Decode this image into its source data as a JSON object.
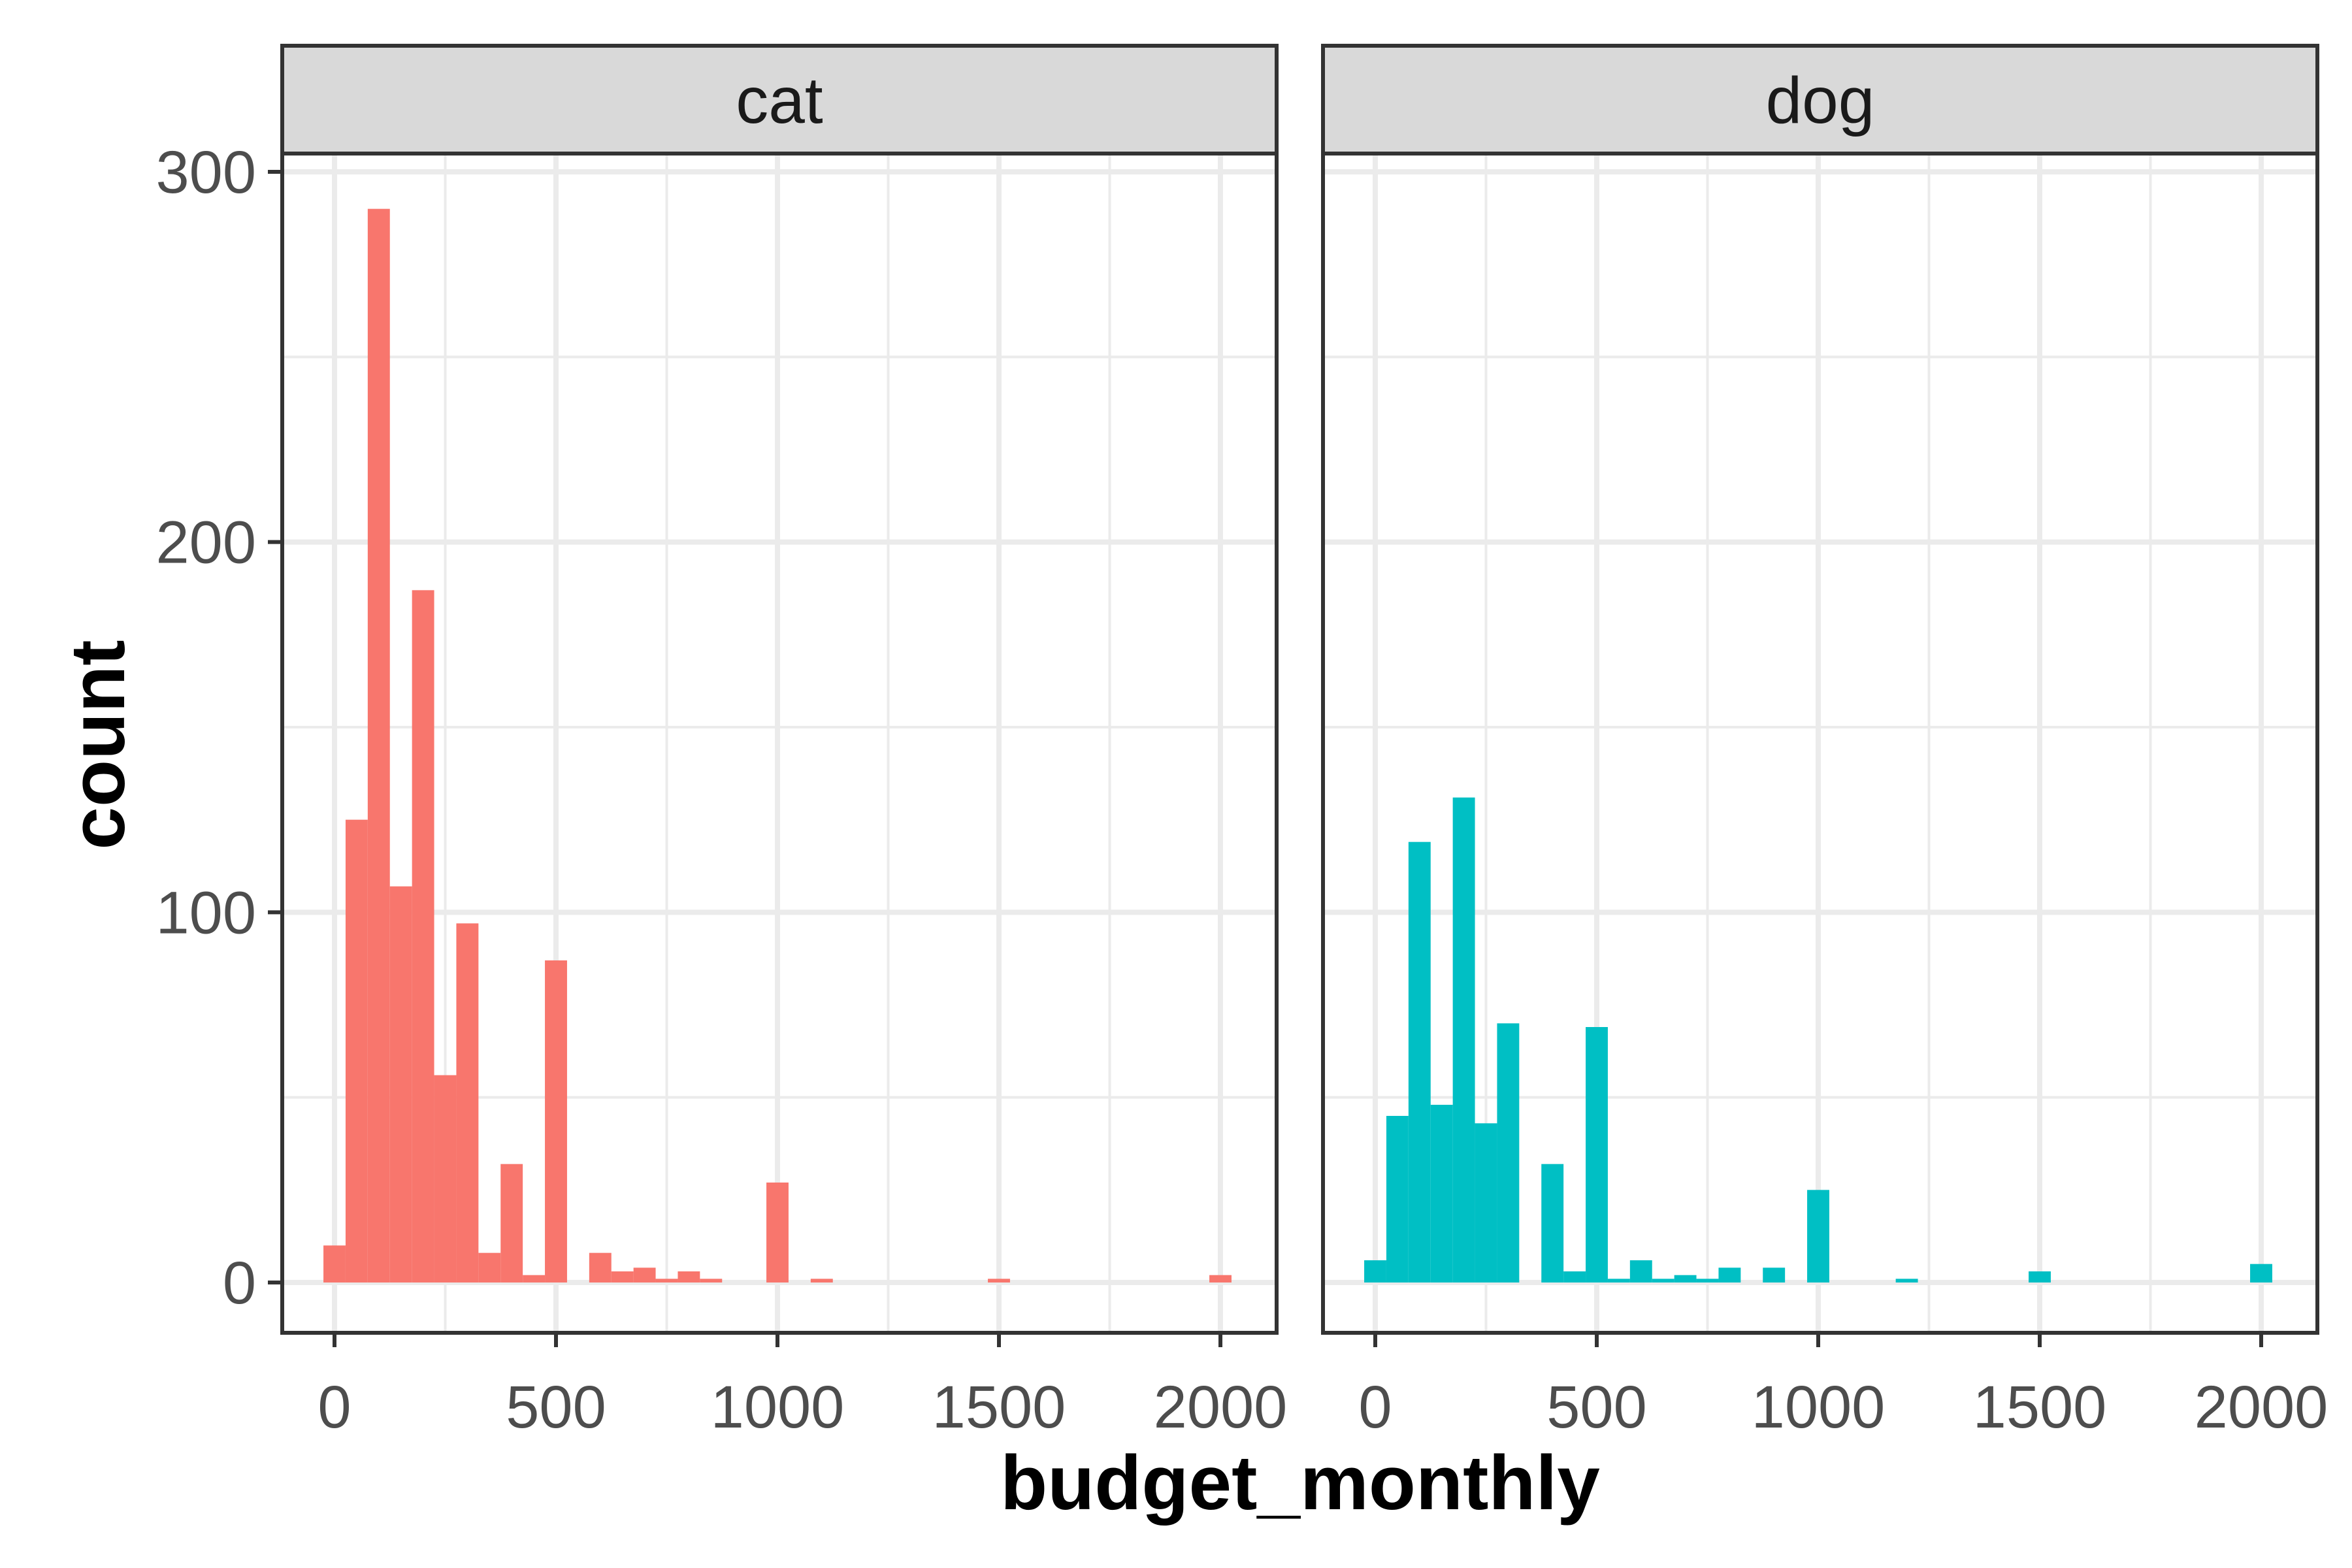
{
  "chart_data": {
    "type": "bar",
    "xlabel": "budget_monthly",
    "ylabel": "count",
    "xlim": [
      -100,
      2100
    ],
    "ylim": [
      0,
      300
    ],
    "x_ticks": [
      0,
      500,
      1000,
      1500,
      2000
    ],
    "y_ticks": [
      0,
      100,
      200,
      300
    ],
    "bin_width": 50,
    "grid": true,
    "facets": [
      {
        "label": "cat",
        "color": "#F8766D",
        "bins": [
          {
            "x": 0,
            "count": 10
          },
          {
            "x": 50,
            "count": 125
          },
          {
            "x": 100,
            "count": 290
          },
          {
            "x": 150,
            "count": 107
          },
          {
            "x": 200,
            "count": 187
          },
          {
            "x": 250,
            "count": 56
          },
          {
            "x": 300,
            "count": 97
          },
          {
            "x": 350,
            "count": 8
          },
          {
            "x": 400,
            "count": 32
          },
          {
            "x": 450,
            "count": 2
          },
          {
            "x": 500,
            "count": 87
          },
          {
            "x": 600,
            "count": 8
          },
          {
            "x": 650,
            "count": 3
          },
          {
            "x": 700,
            "count": 4
          },
          {
            "x": 750,
            "count": 1
          },
          {
            "x": 800,
            "count": 3
          },
          {
            "x": 850,
            "count": 1
          },
          {
            "x": 1000,
            "count": 27
          },
          {
            "x": 1100,
            "count": 1
          },
          {
            "x": 1500,
            "count": 1
          },
          {
            "x": 2000,
            "count": 2
          }
        ]
      },
      {
        "label": "dog",
        "color": "#00BFC4",
        "bins": [
          {
            "x": 0,
            "count": 6
          },
          {
            "x": 50,
            "count": 45
          },
          {
            "x": 100,
            "count": 119
          },
          {
            "x": 150,
            "count": 48
          },
          {
            "x": 200,
            "count": 131
          },
          {
            "x": 250,
            "count": 43
          },
          {
            "x": 300,
            "count": 70
          },
          {
            "x": 400,
            "count": 32
          },
          {
            "x": 450,
            "count": 3
          },
          {
            "x": 500,
            "count": 69
          },
          {
            "x": 550,
            "count": 1
          },
          {
            "x": 600,
            "count": 6
          },
          {
            "x": 650,
            "count": 1
          },
          {
            "x": 700,
            "count": 2
          },
          {
            "x": 750,
            "count": 1
          },
          {
            "x": 800,
            "count": 4
          },
          {
            "x": 900,
            "count": 4
          },
          {
            "x": 1000,
            "count": 25
          },
          {
            "x": 1200,
            "count": 1
          },
          {
            "x": 1500,
            "count": 3
          },
          {
            "x": 2000,
            "count": 5
          }
        ]
      }
    ]
  }
}
